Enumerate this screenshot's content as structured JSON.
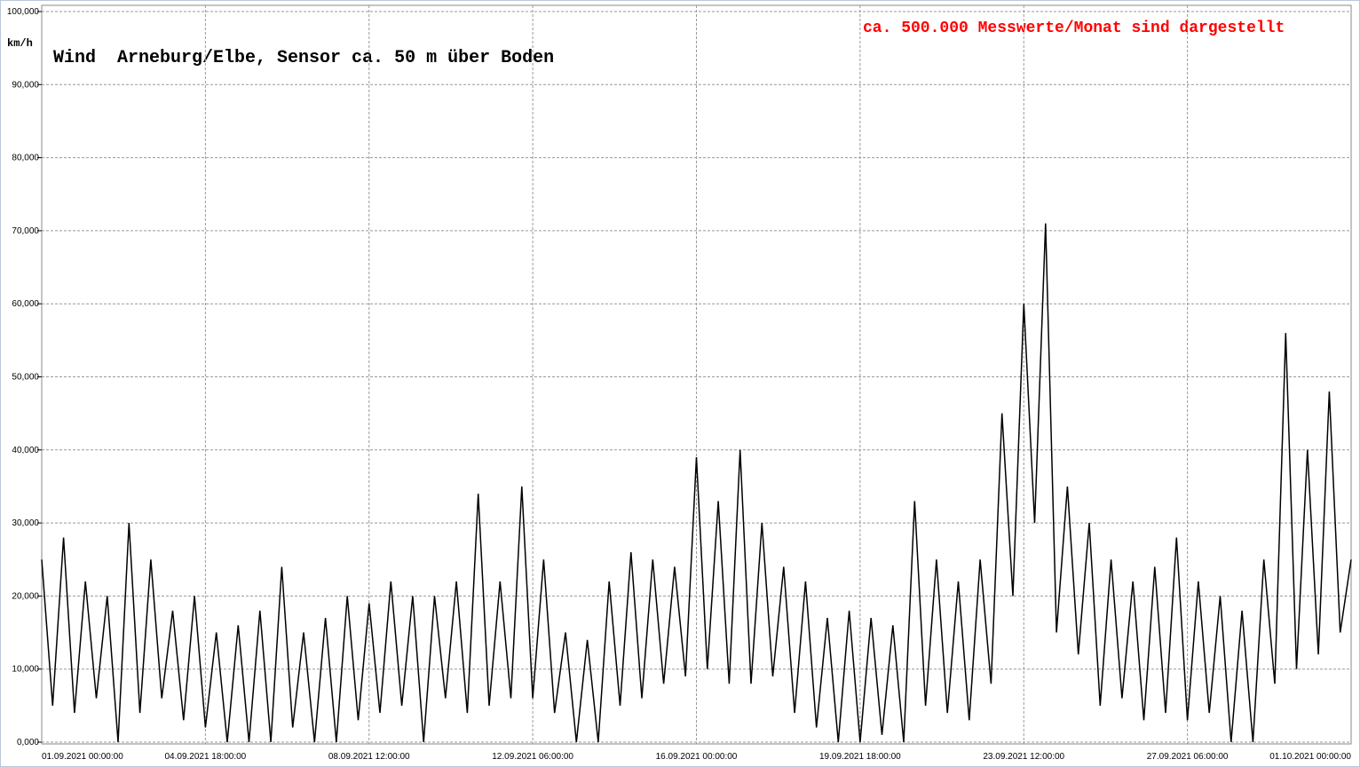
{
  "chart_data": {
    "type": "line",
    "title": "Wind  Arneburg/Elbe, Sensor ca. 50 m über Boden",
    "annotation": "ca. 500.000 Messwerte/Monat sind dargestellt",
    "y_label": "km/h",
    "color": "#000000",
    "grid": true,
    "x": [
      "01.09.2021 00:00:00",
      "01.09.2021 06:00:00",
      "01.09.2021 12:00:00",
      "01.09.2021 18:00:00",
      "02.09.2021 00:00:00",
      "02.09.2021 06:00:00",
      "02.09.2021 12:00:00",
      "02.09.2021 18:00:00",
      "03.09.2021 00:00:00",
      "03.09.2021 06:00:00",
      "03.09.2021 12:00:00",
      "03.09.2021 18:00:00",
      "04.09.2021 00:00:00",
      "04.09.2021 06:00:00",
      "04.09.2021 12:00:00",
      "04.09.2021 18:00:00",
      "05.09.2021 00:00:00",
      "05.09.2021 06:00:00",
      "05.09.2021 12:00:00",
      "05.09.2021 18:00:00",
      "06.09.2021 00:00:00",
      "06.09.2021 06:00:00",
      "06.09.2021 12:00:00",
      "06.09.2021 18:00:00",
      "07.09.2021 00:00:00",
      "07.09.2021 06:00:00",
      "07.09.2021 12:00:00",
      "07.09.2021 18:00:00",
      "08.09.2021 00:00:00",
      "08.09.2021 06:00:00",
      "08.09.2021 12:00:00",
      "08.09.2021 18:00:00",
      "09.09.2021 00:00:00",
      "09.09.2021 06:00:00",
      "09.09.2021 12:00:00",
      "09.09.2021 18:00:00",
      "10.09.2021 00:00:00",
      "10.09.2021 06:00:00",
      "10.09.2021 12:00:00",
      "10.09.2021 18:00:00",
      "11.09.2021 00:00:00",
      "11.09.2021 06:00:00",
      "11.09.2021 12:00:00",
      "11.09.2021 18:00:00",
      "12.09.2021 00:00:00",
      "12.09.2021 06:00:00",
      "12.09.2021 12:00:00",
      "12.09.2021 18:00:00",
      "13.09.2021 00:00:00",
      "13.09.2021 06:00:00",
      "13.09.2021 12:00:00",
      "13.09.2021 18:00:00",
      "14.09.2021 00:00:00",
      "14.09.2021 06:00:00",
      "14.09.2021 12:00:00",
      "14.09.2021 18:00:00",
      "15.09.2021 00:00:00",
      "15.09.2021 06:00:00",
      "15.09.2021 12:00:00",
      "15.09.2021 18:00:00",
      "16.09.2021 00:00:00",
      "16.09.2021 06:00:00",
      "16.09.2021 12:00:00",
      "16.09.2021 18:00:00",
      "17.09.2021 00:00:00",
      "17.09.2021 06:00:00",
      "17.09.2021 12:00:00",
      "17.09.2021 18:00:00",
      "18.09.2021 00:00:00",
      "18.09.2021 06:00:00",
      "18.09.2021 12:00:00",
      "18.09.2021 18:00:00",
      "19.09.2021 00:00:00",
      "19.09.2021 06:00:00",
      "19.09.2021 12:00:00",
      "19.09.2021 18:00:00",
      "20.09.2021 00:00:00",
      "20.09.2021 06:00:00",
      "20.09.2021 12:00:00",
      "20.09.2021 18:00:00",
      "21.09.2021 00:00:00",
      "21.09.2021 06:00:00",
      "21.09.2021 12:00:00",
      "21.09.2021 18:00:00",
      "22.09.2021 00:00:00",
      "22.09.2021 06:00:00",
      "22.09.2021 12:00:00",
      "22.09.2021 18:00:00",
      "23.09.2021 00:00:00",
      "23.09.2021 06:00:00",
      "23.09.2021 12:00:00",
      "23.09.2021 18:00:00",
      "24.09.2021 00:00:00",
      "24.09.2021 06:00:00",
      "24.09.2021 12:00:00",
      "24.09.2021 18:00:00",
      "25.09.2021 00:00:00",
      "25.09.2021 06:00:00",
      "25.09.2021 12:00:00",
      "25.09.2021 18:00:00",
      "26.09.2021 00:00:00",
      "26.09.2021 06:00:00",
      "26.09.2021 12:00:00",
      "26.09.2021 18:00:00",
      "27.09.2021 00:00:00",
      "27.09.2021 06:00:00",
      "27.09.2021 12:00:00",
      "27.09.2021 18:00:00",
      "28.09.2021 00:00:00",
      "28.09.2021 06:00:00",
      "28.09.2021 12:00:00",
      "28.09.2021 18:00:00",
      "29.09.2021 00:00:00",
      "29.09.2021 06:00:00",
      "29.09.2021 12:00:00",
      "29.09.2021 18:00:00",
      "30.09.2021 00:00:00",
      "30.09.2021 06:00:00",
      "30.09.2021 12:00:00",
      "30.09.2021 18:00:00",
      "01.10.2021 00:00:00"
    ],
    "values": [
      25,
      5,
      28,
      4,
      22,
      6,
      20,
      0,
      30,
      4,
      25,
      6,
      18,
      3,
      20,
      2,
      15,
      0,
      16,
      0,
      18,
      0,
      24,
      2,
      15,
      0,
      17,
      0,
      20,
      3,
      19,
      4,
      22,
      5,
      20,
      0,
      20,
      6,
      22,
      4,
      34,
      5,
      22,
      6,
      35,
      6,
      25,
      4,
      15,
      0,
      14,
      0,
      22,
      5,
      26,
      6,
      25,
      8,
      24,
      9,
      39,
      10,
      33,
      8,
      40,
      8,
      30,
      9,
      24,
      4,
      22,
      2,
      17,
      0,
      18,
      0,
      17,
      1,
      16,
      0,
      33,
      5,
      25,
      4,
      22,
      3,
      25,
      8,
      45,
      20,
      60,
      30,
      71,
      15,
      35,
      12,
      30,
      5,
      25,
      6,
      22,
      3,
      24,
      4,
      28,
      3,
      22,
      4,
      20,
      0,
      18,
      0,
      25,
      8,
      56,
      10,
      40,
      12,
      48,
      15,
      25
    ],
    "xlim": [
      "01.09.2021 00:00:00",
      "01.10.2021 00:00:00"
    ],
    "xticks": [
      "01.09.2021 00:00:00",
      "04.09.2021 18:00:00",
      "08.09.2021 12:00:00",
      "12.09.2021 06:00:00",
      "16.09.2021 00:00:00",
      "19.09.2021 18:00:00",
      "23.09.2021 12:00:00",
      "27.09.2021 06:00:00",
      "01.10.2021 00:00:00"
    ],
    "ylim": [
      0,
      100
    ],
    "yticks": [
      {
        "value": 0,
        "label": "0,000"
      },
      {
        "value": 10,
        "label": "10,000"
      },
      {
        "value": 20,
        "label": "20,000"
      },
      {
        "value": 30,
        "label": "30,000"
      },
      {
        "value": 40,
        "label": "40,000"
      },
      {
        "value": 50,
        "label": "50,000"
      },
      {
        "value": 60,
        "label": "60,000"
      },
      {
        "value": 70,
        "label": "70,000"
      },
      {
        "value": 80,
        "label": "80,000"
      },
      {
        "value": 90,
        "label": "90,000"
      },
      {
        "value": 100,
        "label": "100,000"
      }
    ]
  }
}
